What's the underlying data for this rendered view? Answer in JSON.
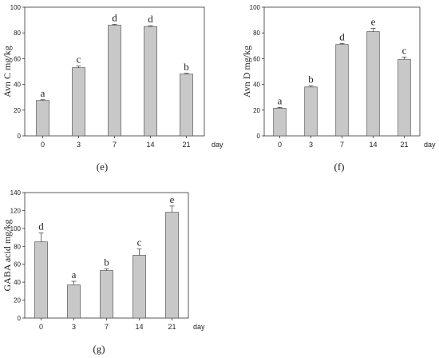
{
  "chart_data": [
    {
      "type": "bar",
      "panel_label": "(e)",
      "ylabel": "Avn C mg/kg",
      "xlabel": "day",
      "categories": [
        "0",
        "3",
        "7",
        "14",
        "21"
      ],
      "values": [
        27.5,
        53,
        86,
        85,
        48
      ],
      "errors": [
        0.6,
        1.2,
        0.6,
        0.6,
        0.6
      ],
      "letters": [
        "a",
        "c",
        "d",
        "d",
        "b"
      ],
      "ylim": [
        0,
        100
      ],
      "yticks": [
        0,
        20,
        40,
        60,
        80,
        100
      ],
      "bar_color": "#c8c8c8"
    },
    {
      "type": "bar",
      "panel_label": "(f)",
      "ylabel": "Avn D mg/kg",
      "xlabel": "day",
      "categories": [
        "0",
        "3",
        "7",
        "14",
        "21"
      ],
      "values": [
        21.5,
        38,
        71,
        81,
        59.5
      ],
      "errors": [
        0.6,
        0.8,
        0.8,
        2.5,
        1.8
      ],
      "letters": [
        "a",
        "b",
        "d",
        "e",
        "c"
      ],
      "ylim": [
        0,
        100
      ],
      "yticks": [
        0,
        20,
        40,
        60,
        80,
        100
      ],
      "bar_color": "#c8c8c8"
    },
    {
      "type": "bar",
      "panel_label": "(g)",
      "ylabel": "GABA acid mg/kg",
      "xlabel": "day",
      "categories": [
        "0",
        "3",
        "7",
        "14",
        "21"
      ],
      "values": [
        85,
        37,
        53,
        70,
        118
      ],
      "errors": [
        10,
        4,
        2,
        7,
        7
      ],
      "letters": [
        "d",
        "a",
        "b",
        "c",
        "e"
      ],
      "ylim": [
        0,
        140
      ],
      "yticks": [
        0,
        20,
        40,
        60,
        80,
        100,
        120,
        140
      ],
      "bar_color": "#c8c8c8"
    }
  ]
}
